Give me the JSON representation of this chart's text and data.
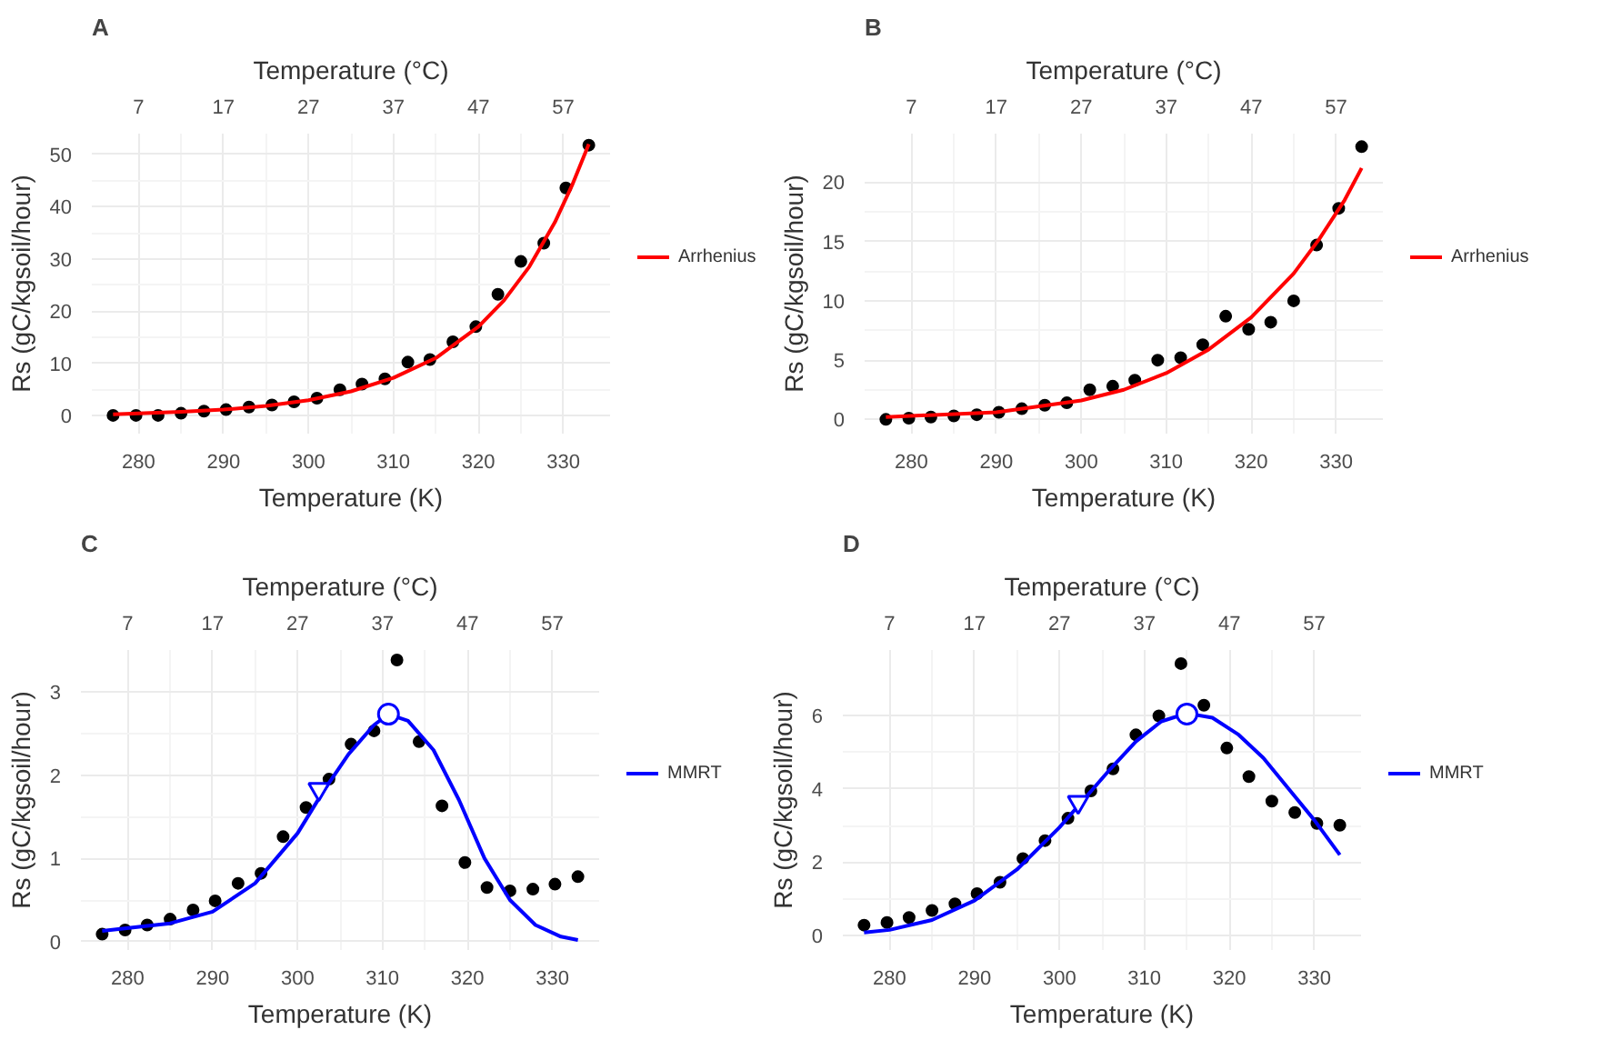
{
  "chart_data": [
    {
      "type": "scatter",
      "title": "A",
      "xlabel": "Temperature (K)",
      "x2label": "Temperature (°C)",
      "ylabel": "Rs (gC/kgsoil/hour)",
      "xlim": [
        274.5,
        335.5
      ],
      "xticks": [
        280,
        290,
        300,
        310,
        320,
        330
      ],
      "x2lim": [
        1.5,
        62.5
      ],
      "x2ticks": [
        7,
        17,
        27,
        37,
        47,
        57
      ],
      "ylim": [
        -3.5,
        54
      ],
      "yticks": [
        0,
        10,
        20,
        30,
        40,
        50
      ],
      "grid": true,
      "legend": "right",
      "series": [
        {
          "marker": "circle",
          "color": "#000000",
          "x": [
            277.0,
            279.7,
            282.3,
            285.0,
            287.7,
            290.3,
            293.0,
            295.7,
            298.3,
            301.0,
            303.7,
            306.3,
            309.0,
            311.7,
            314.3,
            317.0,
            319.7,
            322.3,
            325.0,
            327.7,
            330.3,
            333.0
          ],
          "values": [
            0,
            0,
            0,
            0.4,
            0.8,
            1.1,
            1.6,
            2,
            2.6,
            3.3,
            4.9,
            6,
            7,
            10.2,
            10.7,
            14.1,
            17,
            23.2,
            29.5,
            33,
            43.6,
            51.8
          ]
        },
        {
          "type": "line",
          "name": "Arrhenius",
          "color": "#ff0000",
          "x": [
            277,
            285,
            290,
            295,
            300,
            305,
            310,
            315,
            320,
            323,
            326,
            329,
            331,
            333
          ],
          "values": [
            0.2,
            0.7,
            1.1,
            1.8,
            2.9,
            4.6,
            7.2,
            11,
            17,
            22,
            28.5,
            37,
            44,
            52
          ]
        }
      ]
    },
    {
      "type": "scatter",
      "title": "B",
      "xlabel": "Temperature (K)",
      "x2label": "Temperature (°C)",
      "ylabel": "Rs (gC/kgsoil/hour)",
      "xlim": [
        274.5,
        335.5
      ],
      "xticks": [
        280,
        290,
        300,
        310,
        320,
        330
      ],
      "x2lim": [
        1.5,
        62.5
      ],
      "x2ticks": [
        7,
        17,
        27,
        37,
        47,
        57
      ],
      "ylim": [
        -1.2,
        24.1
      ],
      "yticks": [
        0,
        5,
        10,
        15,
        20
      ],
      "grid": true,
      "legend": "right",
      "series": [
        {
          "marker": "circle",
          "color": "#000000",
          "x": [
            277.0,
            279.7,
            282.3,
            285.0,
            287.7,
            290.3,
            293.0,
            295.7,
            298.3,
            301.0,
            303.7,
            306.3,
            309.0,
            311.7,
            314.3,
            317.0,
            319.7,
            322.3,
            325.0,
            327.7,
            330.3,
            333.0
          ],
          "values": [
            0,
            0.1,
            0.2,
            0.3,
            0.4,
            0.6,
            0.9,
            1.2,
            1.4,
            2.5,
            2.8,
            3.3,
            5,
            5.2,
            6.3,
            8.7,
            7.6,
            8.2,
            10,
            14.7,
            17.8,
            23
          ]
        },
        {
          "type": "line",
          "name": "Arrhenius",
          "color": "#ff0000",
          "x": [
            277,
            290,
            300,
            305,
            310,
            315,
            320,
            325,
            328,
            331,
            333
          ],
          "values": [
            0.2,
            0.6,
            1.6,
            2.5,
            3.9,
            5.9,
            8.6,
            12.3,
            15.2,
            18.5,
            21.2
          ]
        }
      ]
    },
    {
      "type": "scatter",
      "title": "C",
      "xlabel": "Temperature (K)",
      "x2label": "Temperature (°C)",
      "ylabel": "Rs (gC/kgsoil/hour)",
      "xlim": [
        274.5,
        335.5
      ],
      "xticks": [
        280,
        290,
        300,
        310,
        320,
        330
      ],
      "x2lim": [
        1.5,
        62.5
      ],
      "x2ticks": [
        7,
        17,
        27,
        37,
        47,
        57
      ],
      "ylim": [
        -0.1,
        3.5
      ],
      "yticks": [
        0,
        1,
        2,
        3
      ],
      "grid": true,
      "legend": "right",
      "series": [
        {
          "marker": "circle",
          "color": "#000000",
          "x": [
            277.0,
            279.7,
            282.3,
            285.0,
            287.7,
            290.3,
            293.0,
            295.7,
            298.3,
            301.0,
            303.7,
            306.3,
            309.0,
            311.7,
            314.3,
            317.0,
            319.7,
            322.3,
            325.0,
            327.7,
            330.3,
            333.0
          ],
          "values": [
            0.09,
            0.14,
            0.2,
            0.27,
            0.38,
            0.49,
            0.7,
            0.82,
            1.26,
            1.61,
            1.95,
            2.37,
            2.53,
            3.38,
            2.4,
            1.63,
            0.95,
            0.65,
            0.61,
            0.63,
            0.69,
            0.78
          ]
        },
        {
          "type": "line",
          "name": "MMRT",
          "color": "#0000ff",
          "x": [
            277,
            285,
            290,
            295,
            300,
            303,
            306,
            309,
            310.7,
            313,
            316,
            319,
            322,
            325,
            328,
            331,
            333
          ],
          "values": [
            0.13,
            0.22,
            0.36,
            0.7,
            1.3,
            1.8,
            2.25,
            2.6,
            2.73,
            2.65,
            2.3,
            1.7,
            1.0,
            0.5,
            0.2,
            0.06,
            0.02
          ]
        },
        {
          "marker": "triangle",
          "color": "#0000ff",
          "x": [
            302.5
          ],
          "values": [
            1.83
          ]
        },
        {
          "marker": "circle",
          "color": "#0000ff",
          "x": [
            310.7
          ],
          "values": [
            2.73
          ]
        }
      ]
    },
    {
      "type": "scatter",
      "title": "D",
      "xlabel": "Temperature (K)",
      "x2label": "Temperature (°C)",
      "ylabel": "Rs (gC/kgsoil/hour)",
      "xlim": [
        274.5,
        335.5
      ],
      "xticks": [
        280,
        290,
        300,
        310,
        320,
        330
      ],
      "x2lim": [
        1.5,
        62.5
      ],
      "x2ticks": [
        7,
        17,
        27,
        37,
        47,
        57
      ],
      "ylim": [
        -0.4,
        7.8
      ],
      "yticks": [
        0,
        2,
        4,
        6
      ],
      "grid": true,
      "legend": "right",
      "series": [
        {
          "marker": "circle",
          "color": "#000000",
          "x": [
            277.0,
            279.7,
            282.3,
            285.0,
            287.7,
            290.3,
            293.0,
            295.7,
            298.3,
            301.0,
            303.7,
            306.3,
            309.0,
            311.7,
            314.3,
            317.0,
            319.7,
            322.3,
            325.0,
            327.7,
            330.3,
            333.0
          ],
          "values": [
            0.28,
            0.35,
            0.49,
            0.68,
            0.86,
            1.14,
            1.45,
            2.1,
            2.59,
            3.2,
            3.95,
            4.55,
            5.48,
            6.0,
            7.43,
            6.29,
            5.12,
            4.34,
            3.67,
            3.36,
            3.06,
            3.01
          ]
        },
        {
          "type": "line",
          "name": "MMRT",
          "color": "#0000ff",
          "x": [
            277,
            280,
            285,
            290,
            295,
            300,
            303,
            306,
            309,
            312,
            315,
            318,
            321,
            324,
            327,
            330,
            333
          ],
          "values": [
            0.08,
            0.15,
            0.42,
            0.95,
            1.8,
            2.95,
            3.75,
            4.55,
            5.3,
            5.85,
            6.07,
            5.95,
            5.5,
            4.85,
            4.0,
            3.15,
            2.2
          ]
        },
        {
          "marker": "triangle",
          "color": "#0000ff",
          "x": [
            302.2
          ],
          "values": [
            3.64
          ]
        },
        {
          "marker": "circle",
          "color": "#0000ff",
          "x": [
            315.0
          ],
          "values": [
            6.05
          ]
        }
      ]
    }
  ]
}
